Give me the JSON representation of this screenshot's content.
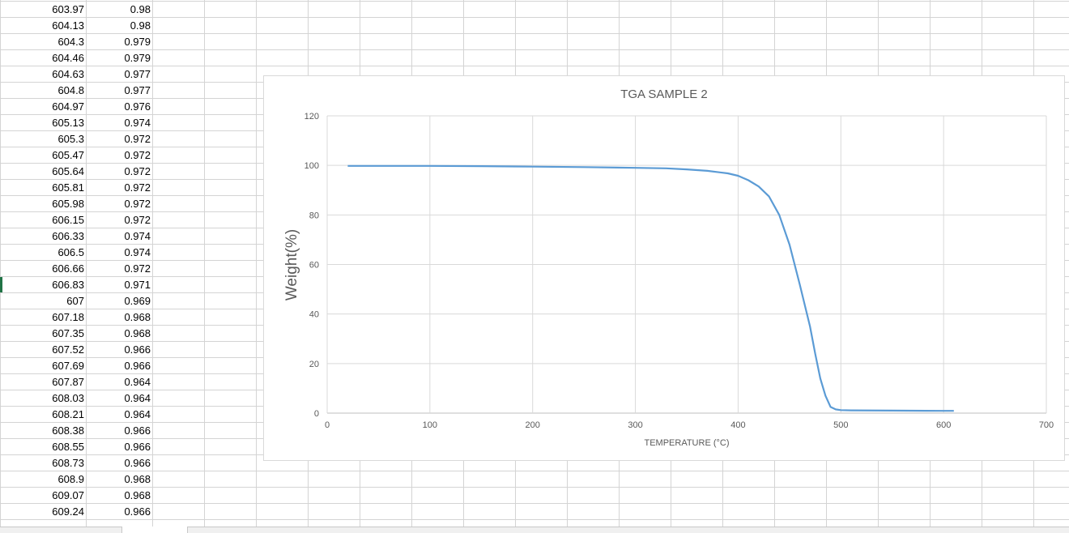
{
  "spreadsheet": {
    "rows": [
      [
        "603.97",
        "0.98"
      ],
      [
        "604.13",
        "0.98"
      ],
      [
        "604.3",
        "0.979"
      ],
      [
        "604.46",
        "0.979"
      ],
      [
        "604.63",
        "0.977"
      ],
      [
        "604.8",
        "0.977"
      ],
      [
        "604.97",
        "0.976"
      ],
      [
        "605.13",
        "0.974"
      ],
      [
        "605.3",
        "0.972"
      ],
      [
        "605.47",
        "0.972"
      ],
      [
        "605.64",
        "0.972"
      ],
      [
        "605.81",
        "0.972"
      ],
      [
        "605.98",
        "0.972"
      ],
      [
        "606.15",
        "0.972"
      ],
      [
        "606.33",
        "0.974"
      ],
      [
        "606.5",
        "0.974"
      ],
      [
        "606.66",
        "0.972"
      ],
      [
        "606.83",
        "0.971"
      ],
      [
        "607",
        "0.969"
      ],
      [
        "607.18",
        "0.968"
      ],
      [
        "607.35",
        "0.968"
      ],
      [
        "607.52",
        "0.966"
      ],
      [
        "607.69",
        "0.966"
      ],
      [
        "607.87",
        "0.964"
      ],
      [
        "608.03",
        "0.964"
      ],
      [
        "608.21",
        "0.964"
      ],
      [
        "608.38",
        "0.966"
      ],
      [
        "608.55",
        "0.966"
      ],
      [
        "608.73",
        "0.966"
      ],
      [
        "608.9",
        "0.968"
      ],
      [
        "609.07",
        "0.968"
      ],
      [
        "609.24",
        "0.966"
      ]
    ]
  },
  "chart_data": {
    "type": "line",
    "title": "TGA SAMPLE 2",
    "xlabel": "TEMPERATURE (°C)",
    "ylabel": "Weight(%)",
    "xlim": [
      0,
      700
    ],
    "ylim": [
      0,
      120
    ],
    "xticks": [
      0,
      100,
      200,
      300,
      400,
      500,
      600,
      700
    ],
    "yticks": [
      0,
      20,
      40,
      60,
      80,
      100,
      120
    ],
    "grid": true,
    "line_color": "#5b9bd5",
    "series": [
      {
        "x": [
          20,
          100,
          150,
          200,
          250,
          300,
          330,
          350,
          370,
          390,
          400,
          410,
          420,
          430,
          440,
          450,
          460,
          470,
          475,
          480,
          485,
          490,
          495,
          500,
          510,
          550,
          600,
          610
        ],
        "y": [
          99.8,
          99.8,
          99.7,
          99.5,
          99.3,
          99.0,
          98.8,
          98.4,
          97.8,
          96.8,
          95.8,
          94.0,
          91.5,
          87.5,
          80.0,
          68.0,
          52.0,
          35.0,
          24.0,
          14.0,
          7.0,
          2.5,
          1.5,
          1.2,
          1.1,
          1.0,
          0.9,
          0.9
        ]
      }
    ]
  }
}
